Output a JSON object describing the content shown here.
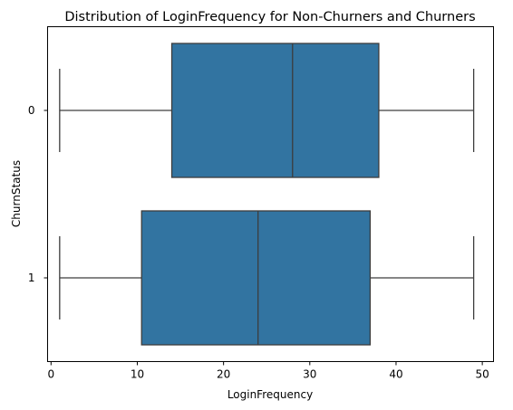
{
  "chart_data": {
    "type": "boxplot",
    "orientation": "horizontal",
    "title": "Distribution of LoginFrequency for Non-Churners and Churners",
    "xlabel": "LoginFrequency",
    "ylabel": "ChurnStatus",
    "xlim": [
      -0.4,
      51.3
    ],
    "x_ticks": [
      0,
      10,
      20,
      30,
      40,
      50
    ],
    "x_tick_labels": [
      "0",
      "10",
      "20",
      "30",
      "40",
      "50"
    ],
    "categories": [
      "0",
      "1"
    ],
    "boxes": [
      {
        "category": "0",
        "whisker_low": 1,
        "q1": 14,
        "median": 28,
        "q3": 38,
        "whisker_high": 49
      },
      {
        "category": "1",
        "whisker_low": 1,
        "q1": 10.5,
        "median": 24,
        "q3": 37,
        "whisker_high": 49
      }
    ],
    "box_color": "#3274a1",
    "line_color": "#3d3d3d"
  }
}
